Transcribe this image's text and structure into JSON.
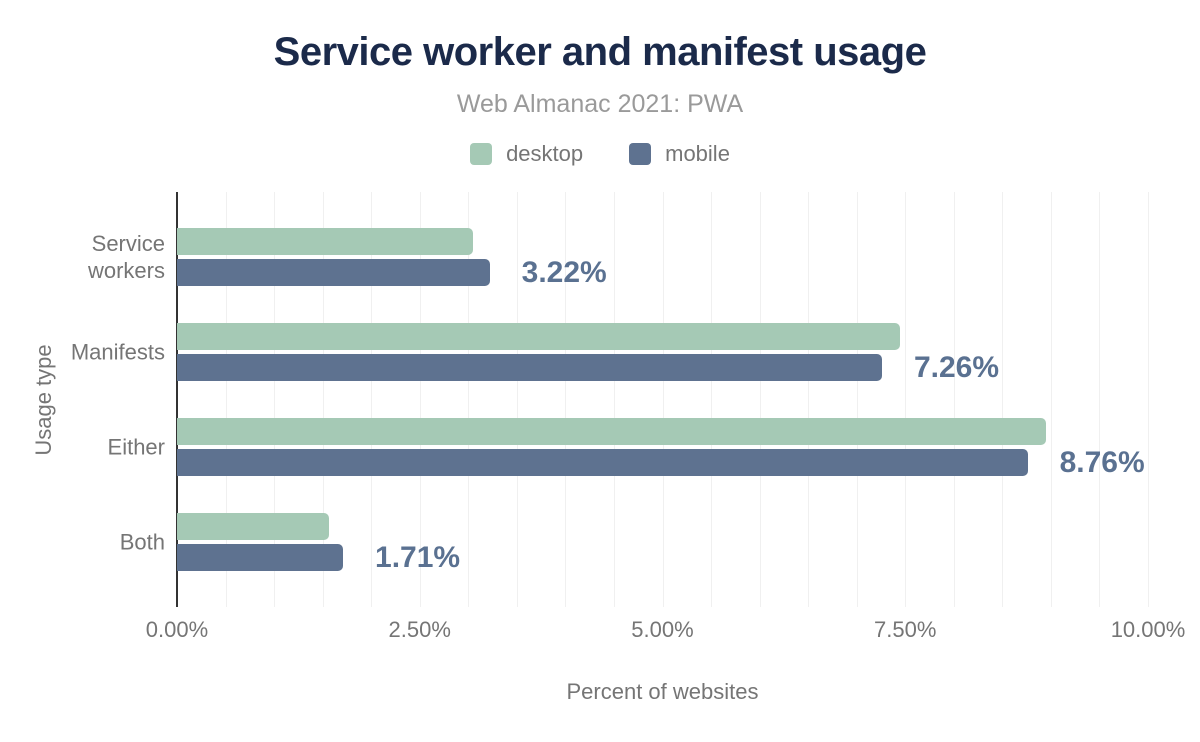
{
  "chart_data": {
    "type": "bar",
    "orientation": "horizontal",
    "title": "Service worker and manifest usage",
    "subtitle": "Web Almanac 2021: PWA",
    "xlabel": "Percent of websites",
    "ylabel": "Usage type",
    "categories": [
      "Service workers",
      "Manifests",
      "Either",
      "Both"
    ],
    "series": [
      {
        "name": "desktop",
        "color": "#a5c9b5",
        "values": [
          3.05,
          7.45,
          8.95,
          1.57
        ]
      },
      {
        "name": "mobile",
        "color": "#5e7290",
        "values": [
          3.22,
          7.26,
          8.76,
          1.71
        ]
      }
    ],
    "data_labels": [
      "3.22%",
      "7.26%",
      "8.76%",
      "1.71%"
    ],
    "data_label_color": "#5a7191",
    "x_ticks": [
      {
        "label": "0.00%",
        "value": 0
      },
      {
        "label": "2.50%",
        "value": 2.5
      },
      {
        "label": "5.00%",
        "value": 5
      },
      {
        "label": "7.50%",
        "value": 7.5
      },
      {
        "label": "10.00%",
        "value": 10
      }
    ],
    "xlim": [
      0,
      10
    ],
    "grid_step": 0.5,
    "grid": true,
    "legend_position": "top",
    "title_color": "#1b2a4a",
    "subtitle_color": "#9a9a9a",
    "axis_text_color": "#757575",
    "gridline_color": "#f0f0f0",
    "axis_line_color": "#333333",
    "background_color": "#ffffff"
  }
}
